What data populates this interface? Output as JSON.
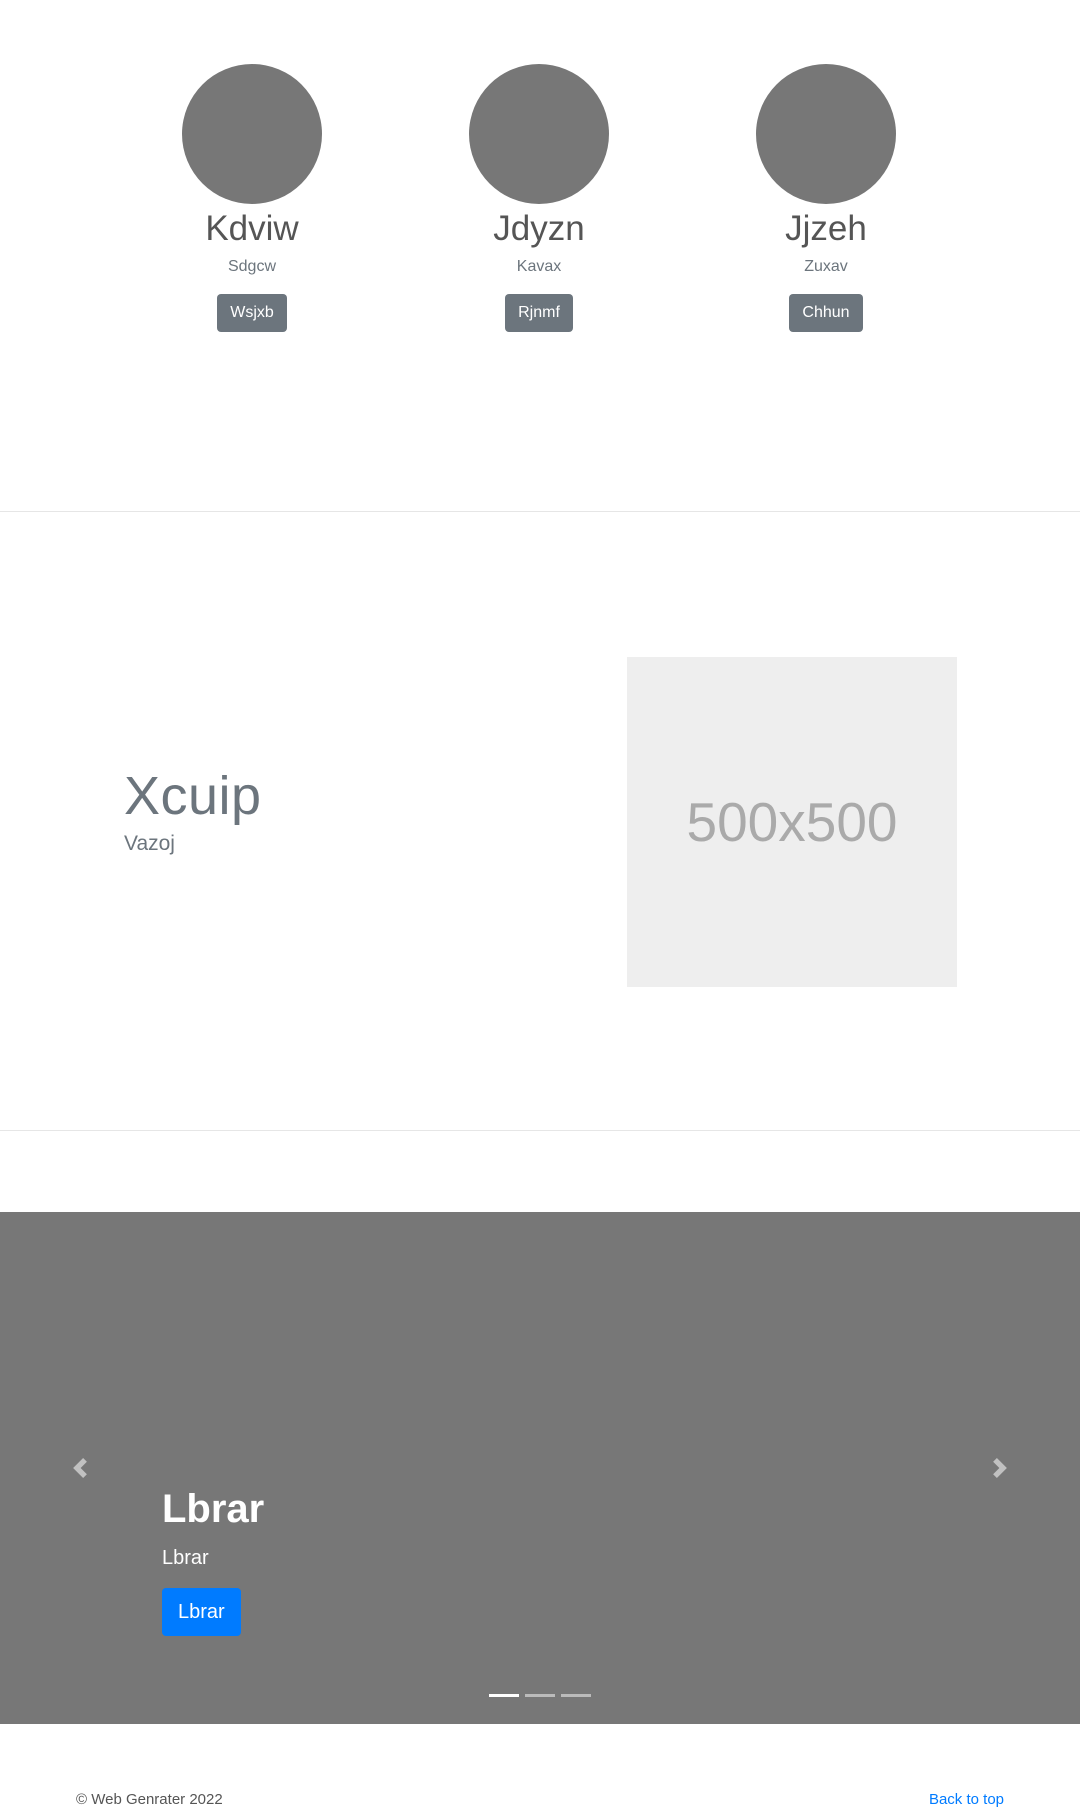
{
  "team": [
    {
      "name": "Kdviw",
      "role": "Sdgcw",
      "button_label": "Wsjxb"
    },
    {
      "name": "Jdyzn",
      "role": "Kavax",
      "button_label": "Rjnmf"
    },
    {
      "name": "Jjzeh",
      "role": "Zuxav",
      "button_label": "Chhun"
    }
  ],
  "feature": {
    "heading": "Xcuip",
    "lead": "Vazoj",
    "image_placeholder": "500x500"
  },
  "carousel": {
    "slide": {
      "title": "Lbrar",
      "text": "Lbrar",
      "button_label": "Lbrar"
    },
    "indicators": 3,
    "active_index": 0,
    "prev_icon": "chevron-left-icon",
    "next_icon": "chevron-right-icon"
  },
  "footer": {
    "copyright": "© Web Genrater 2022",
    "back_to_top": "Back to top"
  },
  "colors": {
    "avatar": "#777777",
    "secondary_button": "#6c757d",
    "primary_button": "#007bff",
    "carousel_bg": "#777777",
    "placeholder_bg": "#eeeeee",
    "link": "#007bff"
  }
}
